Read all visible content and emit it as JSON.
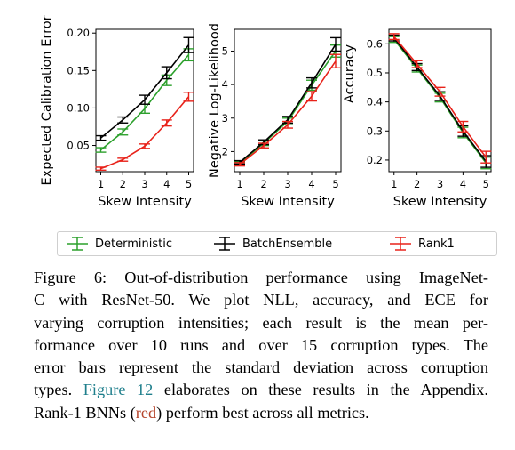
{
  "colors": {
    "deterministic": "#2ca02c",
    "batchensemble": "#000000",
    "rank1": "#e8221a",
    "link": "#1f7f8c",
    "red_word": "#b5442b"
  },
  "chart_data": [
    {
      "type": "line",
      "xlabel": "Skew Intensity",
      "ylabel": "Expected Calibration Error",
      "x": [
        1,
        2,
        3,
        4,
        5
      ],
      "xticks": [
        "1",
        "2",
        "3",
        "4",
        "5"
      ],
      "ylim": [
        0.015,
        0.205
      ],
      "yticks": [
        "0.05",
        "0.10",
        "0.15",
        "0.20"
      ],
      "ytick_values": [
        0.05,
        0.1,
        0.15,
        0.2
      ],
      "grid": false,
      "series": [
        {
          "name": "Deterministic",
          "key": "deterministic",
          "values": [
            0.044,
            0.068,
            0.099,
            0.137,
            0.171
          ],
          "err": [
            0.003,
            0.004,
            0.006,
            0.007,
            0.008
          ]
        },
        {
          "name": "BatchEnsemble",
          "key": "batchensemble",
          "values": [
            0.06,
            0.084,
            0.111,
            0.147,
            0.184
          ],
          "err": [
            0.003,
            0.004,
            0.006,
            0.008,
            0.01
          ]
        },
        {
          "name": "Rank1",
          "key": "rank1",
          "values": [
            0.019,
            0.031,
            0.049,
            0.08,
            0.115
          ],
          "err": [
            0.002,
            0.002,
            0.003,
            0.004,
            0.006
          ]
        }
      ]
    },
    {
      "type": "line",
      "xlabel": "Skew Intensity",
      "ylabel": "Negative Log-Likelihood",
      "x": [
        1,
        2,
        3,
        4,
        5
      ],
      "xticks": [
        "1",
        "2",
        "3",
        "4",
        "5"
      ],
      "ylim": [
        1.4,
        5.65
      ],
      "yticks": [
        "2",
        "3",
        "4",
        "5"
      ],
      "ytick_values": [
        2,
        3,
        4,
        5
      ],
      "grid": false,
      "series": [
        {
          "name": "Deterministic",
          "key": "deterministic",
          "values": [
            1.65,
            2.25,
            2.9,
            3.98,
            5.0
          ],
          "err": [
            0.05,
            0.07,
            0.1,
            0.15,
            0.18
          ]
        },
        {
          "name": "BatchEnsemble",
          "key": "batchensemble",
          "values": [
            1.68,
            2.28,
            2.95,
            4.05,
            5.2
          ],
          "err": [
            0.05,
            0.07,
            0.1,
            0.15,
            0.2
          ]
        },
        {
          "name": "Rank1",
          "key": "rank1",
          "values": [
            1.62,
            2.18,
            2.8,
            3.65,
            4.7
          ],
          "err": [
            0.05,
            0.07,
            0.1,
            0.14,
            0.2
          ]
        }
      ]
    },
    {
      "type": "line",
      "xlabel": "Skew Intensity",
      "ylabel": "Accuracy",
      "x": [
        1,
        2,
        3,
        4,
        5
      ],
      "xticks": [
        "1",
        "2",
        "3",
        "4",
        "5"
      ],
      "ylim": [
        0.16,
        0.65
      ],
      "yticks": [
        "0.2",
        "0.3",
        "0.4",
        "0.5",
        "0.6"
      ],
      "ytick_values": [
        0.2,
        0.3,
        0.4,
        0.5,
        0.6
      ],
      "grid": false,
      "series": [
        {
          "name": "Deterministic",
          "key": "deterministic",
          "values": [
            0.615,
            0.515,
            0.415,
            0.295,
            0.19
          ],
          "err": [
            0.01,
            0.012,
            0.015,
            0.018,
            0.02
          ]
        },
        {
          "name": "BatchEnsemble",
          "key": "batchensemble",
          "values": [
            0.62,
            0.52,
            0.42,
            0.3,
            0.195
          ],
          "err": [
            0.01,
            0.012,
            0.015,
            0.018,
            0.02
          ]
        },
        {
          "name": "Rank1",
          "key": "rank1",
          "values": [
            0.625,
            0.53,
            0.435,
            0.315,
            0.21
          ],
          "err": [
            0.01,
            0.012,
            0.015,
            0.018,
            0.02
          ]
        }
      ]
    }
  ],
  "legend": [
    {
      "label": "Deterministic",
      "key": "deterministic"
    },
    {
      "label": "BatchEnsemble",
      "key": "batchensemble"
    },
    {
      "label": "Rank1",
      "key": "rank1"
    }
  ],
  "caption": {
    "line1": "Figure 6: Out-of-distribution performance using ImageNet-",
    "line2": "C with ResNet-50.  We plot NLL, accuracy, and ECE for",
    "line3": "varying corruption intensities; each result is the mean per-",
    "line4": "formance over 10 runs and over 15 corruption types.  The",
    "line5": "error bars represent the standard deviation across corruption",
    "line6_pre": "types. ",
    "line6_link": "Figure 12",
    "line6_post": " elaborates on these results in the Appendix.",
    "line7_pre": "Rank-1 BNNs (",
    "line7_red": "red",
    "line7_post": ") perform best across all metrics."
  }
}
